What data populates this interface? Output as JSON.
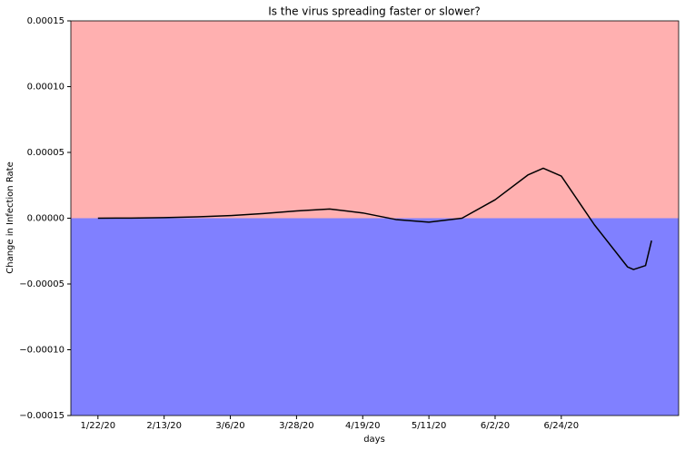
{
  "chart_data": {
    "type": "line",
    "title": "Is the virus spreading faster or slower?",
    "xlabel": "days",
    "ylabel": "Change in Infection Rate",
    "x": [
      "1/22/20",
      "2/2/20",
      "2/13/20",
      "2/24/20",
      "3/6/20",
      "3/17/20",
      "3/28/20",
      "4/8/20",
      "4/19/20",
      "4/30/20",
      "5/11/20",
      "5/22/20",
      "6/2/20",
      "6/13/20",
      "6/18/20",
      "6/24/20",
      "7/5/20",
      "7/16/20",
      "7/18/20",
      "7/22/20",
      "7/24/20"
    ],
    "series": [
      {
        "color": "#000000",
        "values": [
          0,
          1e-07,
          4e-07,
          1e-06,
          2e-06,
          3.5e-06,
          5.5e-06,
          7e-06,
          4e-06,
          -1e-06,
          -3e-06,
          0,
          1.4e-05,
          3.3e-05,
          3.8e-05,
          3.2e-05,
          -5e-06,
          -3.7e-05,
          -3.9e-05,
          -3.6e-05,
          -1.7e-05
        ]
      }
    ],
    "xlim": [
      "1/13/20",
      "8/2/20"
    ],
    "ylim": [
      -0.00015,
      0.00015
    ],
    "xticks": [
      "1/22/20",
      "2/13/20",
      "3/6/20",
      "3/28/20",
      "4/19/20",
      "5/11/20",
      "6/2/20",
      "6/24/20"
    ],
    "yticks": [
      {
        "value": -0.00015,
        "label": "−0.00015"
      },
      {
        "value": -0.0001,
        "label": "−0.00010"
      },
      {
        "value": -5e-05,
        "label": "−0.00005"
      },
      {
        "value": 0,
        "label": "0.00000"
      },
      {
        "value": 5e-05,
        "label": "0.00005"
      },
      {
        "value": 0.0001,
        "label": "0.00010"
      },
      {
        "value": 0.00015,
        "label": "0.00015"
      }
    ],
    "positive_color": "#ffb0b0",
    "negative_color": "#8080ff"
  }
}
